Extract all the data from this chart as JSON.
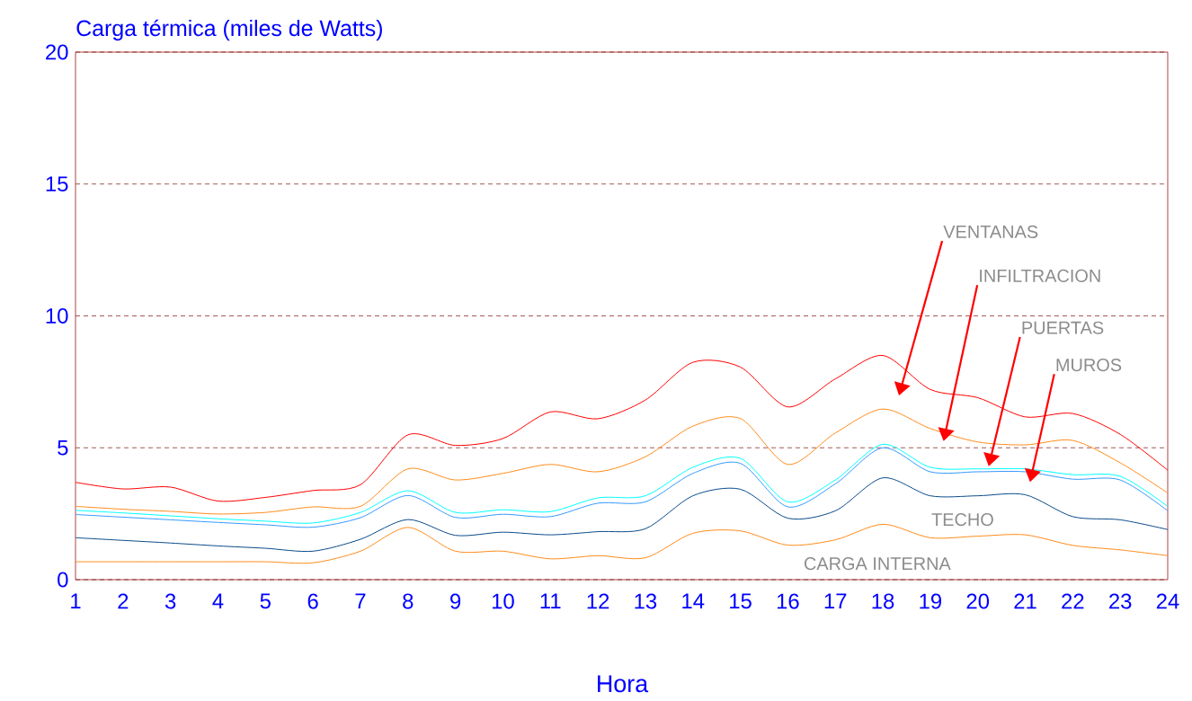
{
  "chart_data": {
    "type": "line",
    "title": "Carga térmica (miles de Watts)",
    "xlabel": "Hora",
    "x": [
      1,
      2,
      3,
      4,
      5,
      6,
      7,
      8,
      9,
      10,
      11,
      12,
      13,
      14,
      15,
      16,
      17,
      18,
      19,
      20,
      21,
      22,
      23,
      24
    ],
    "xlim": [
      1,
      24
    ],
    "xticks": [
      1,
      2,
      3,
      4,
      5,
      6,
      7,
      8,
      9,
      10,
      11,
      12,
      13,
      14,
      15,
      16,
      17,
      18,
      19,
      20,
      21,
      22,
      23,
      24
    ],
    "ylim": [
      0,
      20
    ],
    "yticks": [
      0,
      5,
      10,
      15,
      20
    ],
    "grid": "y",
    "line_style": "solid",
    "marker": "none",
    "series": [
      {
        "color": "#ff0000",
        "values": [
          3.69,
          3.44,
          3.51,
          2.98,
          3.12,
          3.38,
          3.6,
          5.49,
          5.09,
          5.35,
          6.36,
          6.1,
          6.81,
          8.24,
          8.06,
          6.55,
          7.61,
          8.5,
          7.21,
          6.9,
          6.17,
          6.3,
          5.51,
          4.15
        ]
      },
      {
        "color": "#ff8c1a",
        "values": [
          2.78,
          2.67,
          2.59,
          2.49,
          2.55,
          2.76,
          2.78,
          4.2,
          3.78,
          4.03,
          4.37,
          4.09,
          4.66,
          5.82,
          6.11,
          4.37,
          5.56,
          6.47,
          5.73,
          5.22,
          5.11,
          5.28,
          4.43,
          3.29
        ]
      },
      {
        "color": "#00ffff",
        "values": [
          2.63,
          2.53,
          2.42,
          2.31,
          2.22,
          2.15,
          2.55,
          3.37,
          2.55,
          2.65,
          2.58,
          3.1,
          3.18,
          4.26,
          4.6,
          2.95,
          3.78,
          5.13,
          4.26,
          4.2,
          4.2,
          3.98,
          3.92,
          2.78
        ]
      },
      {
        "color": "#3399ff",
        "values": [
          2.47,
          2.37,
          2.27,
          2.17,
          2.08,
          1.99,
          2.35,
          3.19,
          2.36,
          2.48,
          2.39,
          2.9,
          2.95,
          4.03,
          4.41,
          2.76,
          3.63,
          5.0,
          4.09,
          4.09,
          4.09,
          3.81,
          3.78,
          2.61
        ]
      },
      {
        "color": "#0a4a8a",
        "values": [
          1.59,
          1.49,
          1.39,
          1.28,
          1.19,
          1.08,
          1.53,
          2.28,
          1.68,
          1.8,
          1.7,
          1.82,
          1.93,
          3.18,
          3.43,
          2.33,
          2.61,
          3.86,
          3.18,
          3.18,
          3.22,
          2.39,
          2.27,
          1.9
        ]
      },
      {
        "color": "#ff8c1a",
        "values": [
          0.68,
          0.68,
          0.68,
          0.68,
          0.68,
          0.64,
          1.08,
          1.98,
          1.08,
          1.08,
          0.79,
          0.91,
          0.83,
          1.76,
          1.85,
          1.31,
          1.51,
          2.1,
          1.59,
          1.65,
          1.7,
          1.3,
          1.13,
          0.91
        ]
      }
    ],
    "annotations": [
      "VENTANAS",
      "INFILTRACION",
      "PUERTAS",
      "MUROS",
      "TECHO",
      "CARGA INTERNA"
    ]
  }
}
